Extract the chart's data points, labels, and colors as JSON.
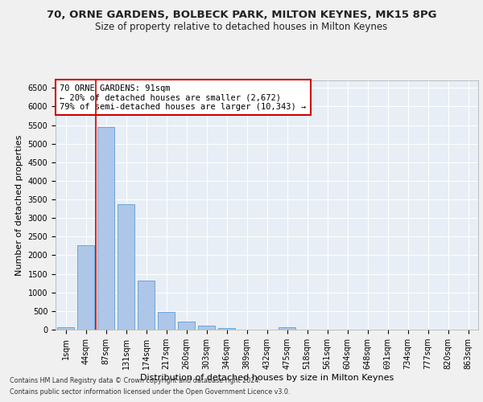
{
  "title1": "70, ORNE GARDENS, BOLBECK PARK, MILTON KEYNES, MK15 8PG",
  "title2": "Size of property relative to detached houses in Milton Keynes",
  "xlabel": "Distribution of detached houses by size in Milton Keynes",
  "ylabel": "Number of detached properties",
  "footnote1": "Contains HM Land Registry data © Crown copyright and database right 2024.",
  "footnote2": "Contains public sector information licensed under the Open Government Licence v3.0.",
  "annotation_line1": "70 ORNE GARDENS: 91sqm",
  "annotation_line2": "← 20% of detached houses are smaller (2,672)",
  "annotation_line3": "79% of semi-detached houses are larger (10,343) →",
  "bar_labels": [
    "1sqm",
    "44sqm",
    "87sqm",
    "131sqm",
    "174sqm",
    "217sqm",
    "260sqm",
    "303sqm",
    "346sqm",
    "389sqm",
    "432sqm",
    "475sqm",
    "518sqm",
    "561sqm",
    "604sqm",
    "648sqm",
    "691sqm",
    "734sqm",
    "777sqm",
    "820sqm",
    "863sqm"
  ],
  "bar_values": [
    75,
    2280,
    5450,
    3380,
    1310,
    480,
    210,
    105,
    45,
    10,
    5,
    55,
    0,
    0,
    0,
    0,
    0,
    0,
    0,
    0,
    0
  ],
  "bar_color": "#aec6e8",
  "bar_edge_color": "#5a9fd4",
  "highlight_color": "#cc0000",
  "ylim": [
    0,
    6700
  ],
  "yticks": [
    0,
    500,
    1000,
    1500,
    2000,
    2500,
    3000,
    3500,
    4000,
    4500,
    5000,
    5500,
    6000,
    6500
  ],
  "bg_color": "#e8eef5",
  "grid_color": "#ffffff",
  "fig_bg_color": "#f0f0f0",
  "annotation_box_color": "#ffffff",
  "annotation_box_edge": "#cc0000",
  "title1_fontsize": 9.5,
  "title2_fontsize": 8.5,
  "axis_label_fontsize": 8,
  "tick_fontsize": 7,
  "annotation_fontsize": 7.5,
  "footnote_fontsize": 5.8
}
